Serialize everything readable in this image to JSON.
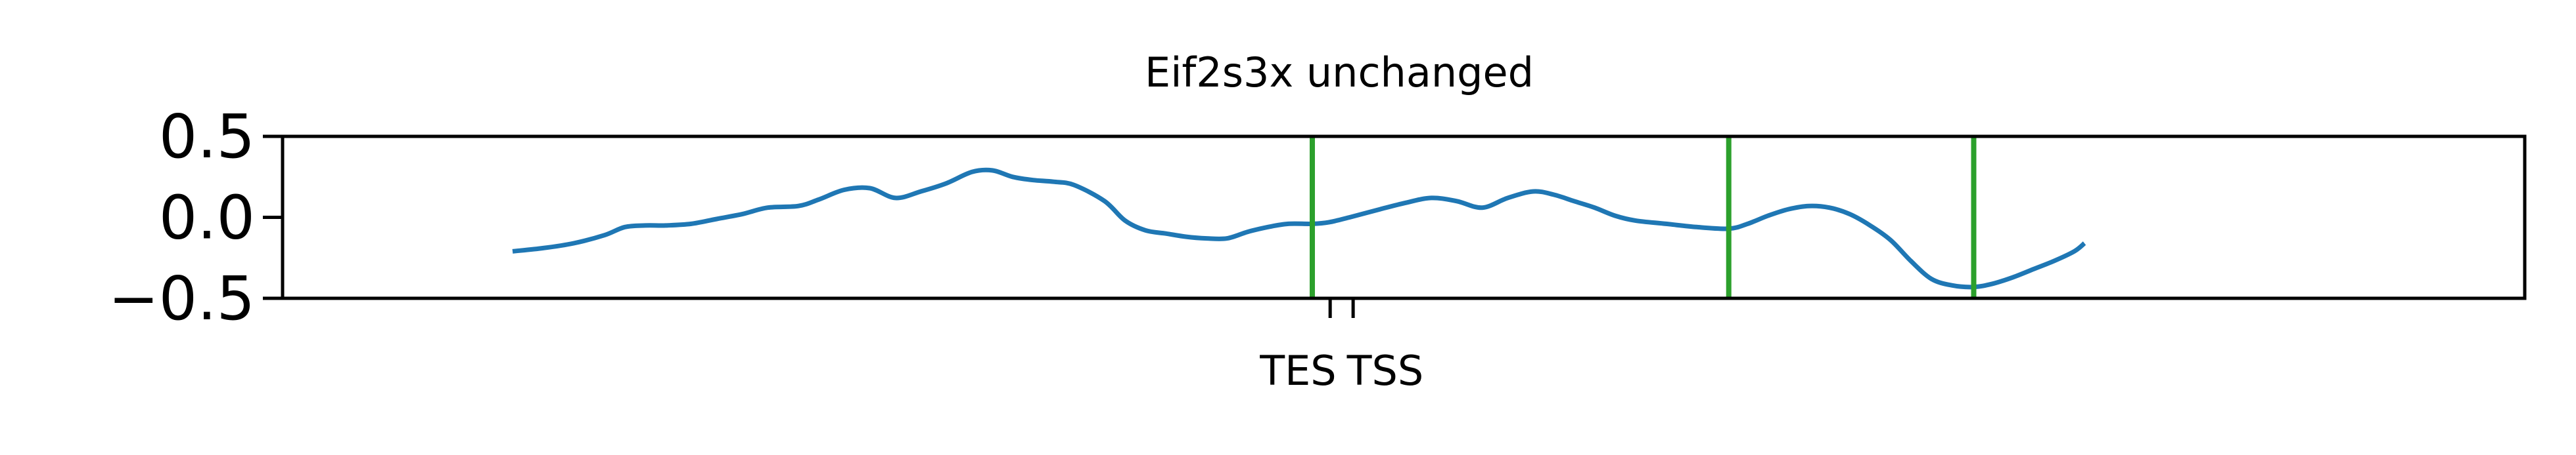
{
  "chart_data": {
    "type": "line",
    "title": "Eif2s3x unchanged",
    "xlabel": "",
    "ylabel": "",
    "ylim": [
      -0.5,
      0.5
    ],
    "xlim": [
      0,
      3483
    ],
    "yticks": [
      {
        "value": 0.5,
        "label": "0.5"
      },
      {
        "value": 0.0,
        "label": "0.0"
      },
      {
        "value": -0.5,
        "label": "−0.5"
      }
    ],
    "xticks": [
      {
        "value": 1602,
        "label": "TES"
      },
      {
        "value": 1647,
        "label": "TSS"
      }
    ],
    "vlines": [
      1567,
      2383,
      2863
    ],
    "colors": {
      "line": "#1f77b4",
      "vline": "#2ca02c",
      "axes": "#000000"
    },
    "grid": false,
    "legend": "none",
    "series": [
      {
        "x": [
          0,
          60,
          120,
          180,
          220,
          260,
          300,
          350,
          400,
          450,
          500,
          560,
          600,
          650,
          700,
          750,
          800,
          850,
          900,
          940,
          980,
          1020,
          1060,
          1100,
          1160,
          1200,
          1240,
          1280,
          1320,
          1360,
          1400,
          1440,
          1480,
          1520,
          1567,
          1600,
          1640,
          1700,
          1750,
          1800,
          1850,
          1900,
          1950,
          2000,
          2040,
          2080,
          2120,
          2160,
          2200,
          2260,
          2320,
          2383,
          2420,
          2460,
          2500,
          2540,
          2580,
          2620,
          2660,
          2700,
          2740,
          2780,
          2820,
          2863,
          2900,
          2940,
          2980,
          3020,
          3060,
          3080
        ],
        "y": [
          -0.21,
          -0.19,
          -0.16,
          -0.11,
          -0.06,
          -0.05,
          -0.05,
          -0.04,
          -0.01,
          0.02,
          0.06,
          0.07,
          0.11,
          0.17,
          0.18,
          0.12,
          0.16,
          0.21,
          0.28,
          0.29,
          0.25,
          0.23,
          0.22,
          0.2,
          0.1,
          -0.02,
          -0.08,
          -0.1,
          -0.12,
          -0.13,
          -0.13,
          -0.09,
          -0.06,
          -0.04,
          -0.04,
          -0.03,
          0.0,
          0.05,
          0.09,
          0.12,
          0.1,
          0.06,
          0.12,
          0.16,
          0.14,
          0.1,
          0.06,
          0.01,
          -0.02,
          -0.04,
          -0.06,
          -0.07,
          -0.04,
          0.01,
          0.05,
          0.07,
          0.06,
          0.02,
          -0.05,
          -0.14,
          -0.27,
          -0.38,
          -0.42,
          -0.43,
          -0.41,
          -0.37,
          -0.32,
          -0.27,
          -0.21,
          -0.16
        ]
      }
    ]
  }
}
